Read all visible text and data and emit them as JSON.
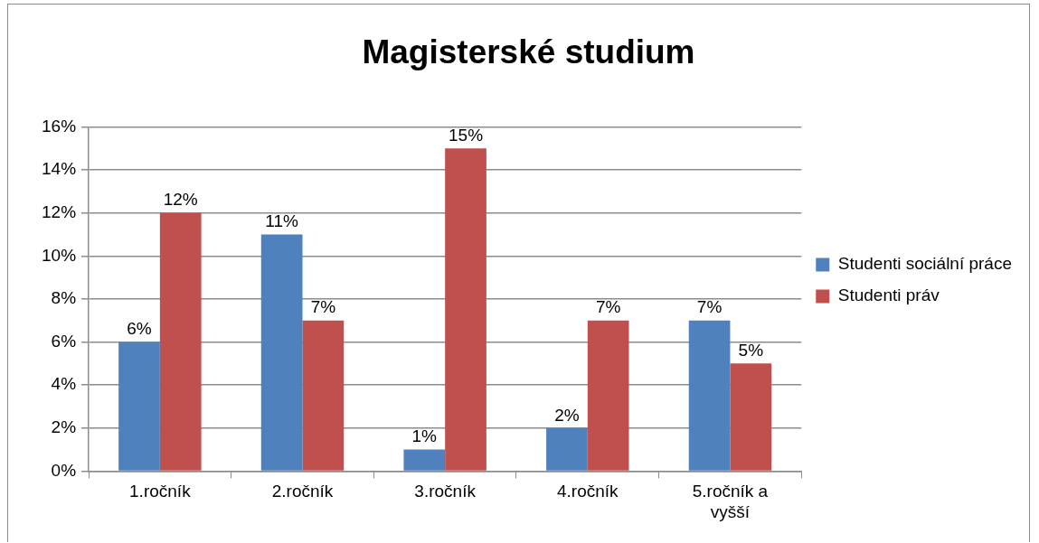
{
  "chart_data": {
    "type": "bar",
    "title": "Magisterské studium",
    "categories": [
      "1.ročník",
      "2.ročník",
      "3.ročník",
      "4.ročník",
      "5.ročník a vyšší"
    ],
    "series": [
      {
        "name": "Studenti sociální práce",
        "color": "#4f81bd",
        "values": [
          6,
          11,
          1,
          2,
          7
        ],
        "value_labels": [
          "6%",
          "11%",
          "1%",
          "2%",
          "7%"
        ]
      },
      {
        "name": "Studenti práv",
        "color": "#c0504d",
        "values": [
          12,
          7,
          15,
          7,
          5
        ],
        "value_labels": [
          "12%",
          "7%",
          "15%",
          "7%",
          "5%"
        ]
      }
    ],
    "ylim": [
      0,
      16
    ],
    "yticks": [
      {
        "value": 0,
        "label": "0%"
      },
      {
        "value": 2,
        "label": "2%"
      },
      {
        "value": 4,
        "label": "4%"
      },
      {
        "value": 6,
        "label": "6%"
      },
      {
        "value": 8,
        "label": "8%"
      },
      {
        "value": 10,
        "label": "10%"
      },
      {
        "value": 12,
        "label": "12%"
      },
      {
        "value": 14,
        "label": "14%"
      },
      {
        "value": 16,
        "label": "16%"
      }
    ],
    "grid": "y",
    "legend": "right"
  }
}
